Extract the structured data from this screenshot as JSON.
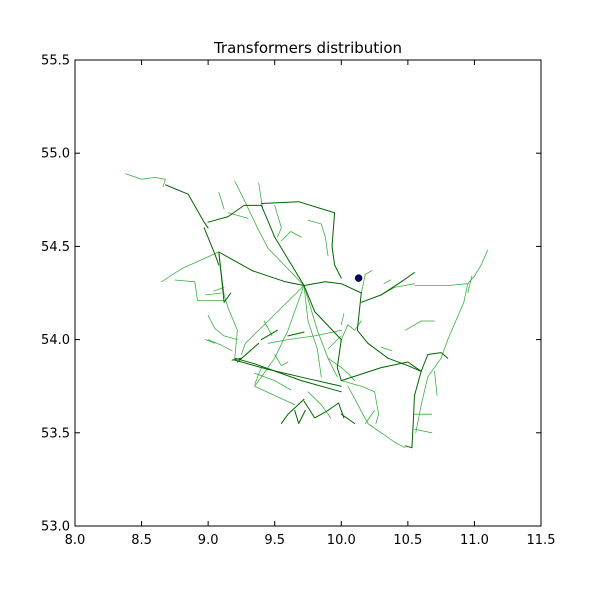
{
  "chart_data": {
    "type": "line",
    "title": "Transformers distribution",
    "xlabel": "",
    "ylabel": "",
    "xlim": [
      8.0,
      11.5
    ],
    "ylim": [
      53.0,
      55.5
    ],
    "x_ticks": [
      8.0,
      8.5,
      9.0,
      9.5,
      10.0,
      10.5,
      11.0,
      11.5
    ],
    "x_tick_labels": [
      "8.0",
      "8.5",
      "9.0",
      "9.5",
      "10.0",
      "10.5",
      "11.0",
      "11.5"
    ],
    "y_ticks": [
      53.0,
      53.5,
      54.0,
      54.5,
      55.0,
      55.5
    ],
    "y_tick_labels": [
      "53.0",
      "53.5",
      "54.0",
      "54.5",
      "55.0",
      "55.5"
    ],
    "grid": false,
    "colors": {
      "dark_line": "#006400",
      "light_line": "#3cb043",
      "point": "#000066"
    },
    "series": [
      {
        "style": "dark",
        "lines": [
          [
            [
              8.68,
              54.83
            ],
            [
              8.85,
              54.78
            ],
            [
              8.97,
              54.63
            ],
            [
              9.0,
              54.6
            ]
          ],
          [
            [
              8.97,
              54.6
            ],
            [
              9.05,
              54.46
            ],
            [
              9.08,
              54.4
            ]
          ],
          [
            [
              9.0,
              54.63
            ],
            [
              9.15,
              54.66
            ],
            [
              9.27,
              54.72
            ],
            [
              9.4,
              54.72
            ]
          ],
          [
            [
              9.08,
              54.47
            ],
            [
              9.33,
              54.37
            ],
            [
              9.58,
              54.31
            ],
            [
              9.72,
              54.29
            ]
          ],
          [
            [
              9.4,
              54.72
            ],
            [
              9.5,
              54.55
            ],
            [
              9.72,
              54.29
            ]
          ],
          [
            [
              9.4,
              54.73
            ],
            [
              9.68,
              54.74
            ],
            [
              9.86,
              54.7
            ],
            [
              9.95,
              54.68
            ]
          ],
          [
            [
              9.95,
              54.68
            ],
            [
              9.93,
              54.5
            ],
            [
              9.95,
              54.4
            ],
            [
              10.0,
              54.33
            ]
          ],
          [
            [
              9.72,
              54.29
            ],
            [
              9.88,
              54.31
            ],
            [
              10.0,
              54.3
            ],
            [
              10.15,
              54.25
            ]
          ],
          [
            [
              10.15,
              54.25
            ],
            [
              10.12,
              54.05
            ],
            [
              10.2,
              53.98
            ],
            [
              10.35,
              53.9
            ]
          ],
          [
            [
              10.35,
              53.9
            ],
            [
              10.5,
              53.86
            ],
            [
              10.6,
              53.83
            ],
            [
              10.65,
              53.92
            ]
          ],
          [
            [
              10.65,
              53.92
            ],
            [
              10.75,
              53.93
            ],
            [
              10.8,
              53.9
            ]
          ],
          [
            [
              10.15,
              54.2
            ],
            [
              10.3,
              54.24
            ],
            [
              10.45,
              54.31
            ],
            [
              10.55,
              54.36
            ]
          ],
          [
            [
              10.6,
              53.83
            ],
            [
              10.55,
              53.7
            ],
            [
              10.54,
              53.55
            ],
            [
              10.53,
              53.42
            ]
          ],
          [
            [
              9.72,
              54.29
            ],
            [
              9.8,
              54.15
            ],
            [
              9.92,
              54.06
            ],
            [
              10.0,
              54.0
            ]
          ],
          [
            [
              10.0,
              54.0
            ],
            [
              9.97,
              53.85
            ],
            [
              10.0,
              53.78
            ]
          ],
          [
            [
              10.0,
              53.78
            ],
            [
              10.3,
              53.85
            ],
            [
              10.5,
              53.88
            ],
            [
              10.6,
              53.83
            ]
          ],
          [
            [
              9.2,
              53.89
            ],
            [
              9.45,
              53.84
            ],
            [
              9.75,
              53.79
            ],
            [
              10.0,
              53.75
            ]
          ],
          [
            [
              9.2,
              53.9
            ],
            [
              9.35,
              53.87
            ],
            [
              9.7,
              53.78
            ],
            [
              10.0,
              53.72
            ]
          ],
          [
            [
              9.72,
              53.68
            ],
            [
              9.6,
              53.6
            ],
            [
              9.55,
              53.55
            ]
          ],
          [
            [
              9.72,
              53.67
            ],
            [
              9.8,
              53.58
            ],
            [
              9.9,
              53.62
            ],
            [
              9.98,
              53.66
            ]
          ],
          [
            [
              9.65,
              53.62
            ],
            [
              9.68,
              53.55
            ],
            [
              9.73,
              53.62
            ]
          ],
          [
            [
              9.98,
              53.66
            ],
            [
              10.02,
              53.58
            ]
          ],
          [
            [
              10.48,
              53.43
            ],
            [
              10.53,
              53.42
            ]
          ],
          [
            [
              9.08,
              54.47
            ],
            [
              9.12,
              54.2
            ],
            [
              9.17,
              54.25
            ]
          ],
          [
            [
              9.22,
              53.88
            ],
            [
              9.38,
              53.98
            ]
          ],
          [
            [
              9.18,
              53.89
            ],
            [
              9.25,
              53.9
            ]
          ],
          [
            [
              9.4,
              54.0
            ],
            [
              9.52,
              54.05
            ]
          ],
          [
            [
              9.6,
              54.02
            ],
            [
              9.72,
              54.04
            ]
          ],
          [
            [
              10.0,
              53.6
            ],
            [
              10.1,
              53.55
            ]
          ]
        ]
      },
      {
        "style": "light",
        "lines": [
          [
            [
              8.38,
              54.89
            ],
            [
              8.5,
              54.86
            ],
            [
              8.6,
              54.87
            ],
            [
              8.68,
              54.86
            ],
            [
              8.66,
              54.82
            ]
          ],
          [
            [
              8.65,
              54.31
            ],
            [
              8.8,
              54.38
            ],
            [
              9.08,
              54.47
            ]
          ],
          [
            [
              8.75,
              54.32
            ],
            [
              8.9,
              54.31
            ],
            [
              8.92,
              54.21
            ],
            [
              9.12,
              54.21
            ]
          ],
          [
            [
              9.08,
              54.47
            ],
            [
              9.1,
              54.35
            ],
            [
              9.12,
              54.24
            ],
            [
              9.15,
              54.17
            ]
          ],
          [
            [
              9.15,
              54.17
            ],
            [
              9.22,
              54.05
            ],
            [
              9.2,
              53.9
            ]
          ],
          [
            [
              9.0,
              54.13
            ],
            [
              9.05,
              54.06
            ],
            [
              9.12,
              54.02
            ],
            [
              9.22,
              54.0
            ]
          ],
          [
            [
              9.0,
              54.0
            ],
            [
              9.1,
              53.97
            ],
            [
              9.18,
              53.94
            ]
          ],
          [
            [
              8.98,
              54.24
            ],
            [
              9.1,
              54.25
            ]
          ],
          [
            [
              8.98,
              54.0
            ],
            [
              9.05,
              53.98
            ]
          ],
          [
            [
              9.04,
              54.26
            ],
            [
              9.12,
              54.28
            ]
          ],
          [
            [
              9.2,
              54.85
            ],
            [
              9.27,
              54.75
            ],
            [
              9.37,
              54.6
            ],
            [
              9.45,
              54.49
            ],
            [
              9.72,
              54.29
            ]
          ],
          [
            [
              9.08,
              54.79
            ],
            [
              9.12,
              54.7
            ]
          ],
          [
            [
              9.15,
              54.68
            ],
            [
              9.3,
              54.65
            ]
          ],
          [
            [
              9.38,
              54.84
            ],
            [
              9.41,
              54.7
            ]
          ],
          [
            [
              9.5,
              54.72
            ],
            [
              9.55,
              54.6
            ],
            [
              9.52,
              54.55
            ]
          ],
          [
            [
              9.55,
              54.53
            ],
            [
              9.62,
              54.58
            ],
            [
              9.7,
              54.55
            ]
          ],
          [
            [
              9.75,
              54.64
            ],
            [
              9.85,
              54.62
            ],
            [
              9.88,
              54.55
            ],
            [
              9.9,
              54.45
            ]
          ],
          [
            [
              9.72,
              54.29
            ],
            [
              9.6,
              54.05
            ],
            [
              9.5,
              53.9
            ],
            [
              9.35,
              53.75
            ]
          ],
          [
            [
              9.72,
              54.29
            ],
            [
              9.82,
              54.05
            ],
            [
              9.9,
              53.9
            ],
            [
              9.97,
              53.8
            ]
          ],
          [
            [
              9.72,
              54.29
            ],
            [
              9.45,
              54.1
            ],
            [
              9.28,
              53.98
            ],
            [
              9.25,
              53.92
            ]
          ],
          [
            [
              9.72,
              54.29
            ],
            [
              9.75,
              54.1
            ],
            [
              9.82,
              53.95
            ],
            [
              9.85,
              53.8
            ]
          ],
          [
            [
              9.45,
              53.98
            ],
            [
              9.6,
              54.0
            ],
            [
              9.8,
              54.02
            ],
            [
              10.0,
              54.05
            ]
          ],
          [
            [
              9.35,
              53.75
            ],
            [
              9.5,
              53.7
            ],
            [
              9.65,
              53.65
            ]
          ],
          [
            [
              9.35,
              53.82
            ],
            [
              9.5,
              53.78
            ],
            [
              9.62,
              53.73
            ]
          ],
          [
            [
              9.35,
              53.76
            ],
            [
              9.4,
              53.85
            ]
          ],
          [
            [
              10.0,
              54.0
            ],
            [
              10.05,
              54.08
            ],
            [
              10.1,
              54.05
            ],
            [
              10.15,
              54.1
            ]
          ],
          [
            [
              10.02,
              54.14
            ],
            [
              10.0,
              54.08
            ]
          ],
          [
            [
              9.9,
              53.95
            ],
            [
              10.0,
              54.02
            ]
          ],
          [
            [
              10.15,
              54.25
            ],
            [
              10.18,
              54.35
            ],
            [
              10.23,
              54.37
            ]
          ],
          [
            [
              10.3,
              54.24
            ],
            [
              10.4,
              54.28
            ],
            [
              10.55,
              54.3
            ]
          ],
          [
            [
              10.32,
              54.3
            ],
            [
              10.37,
              54.32
            ]
          ],
          [
            [
              10.55,
              54.29
            ],
            [
              10.8,
              54.29
            ],
            [
              10.95,
              54.3
            ],
            [
              11.0,
              54.34
            ]
          ],
          [
            [
              10.95,
              54.3
            ],
            [
              10.92,
              54.2
            ],
            [
              10.8,
              54.0
            ],
            [
              10.75,
              53.9
            ]
          ],
          [
            [
              10.75,
              53.9
            ],
            [
              10.65,
              53.8
            ],
            [
              10.6,
              53.65
            ],
            [
              10.56,
              53.5
            ]
          ],
          [
            [
              10.48,
              54.05
            ],
            [
              10.6,
              54.1
            ],
            [
              10.7,
              54.1
            ]
          ],
          [
            [
              10.0,
              53.78
            ],
            [
              10.15,
              53.75
            ],
            [
              10.25,
              53.72
            ]
          ],
          [
            [
              10.05,
              53.75
            ],
            [
              10.2,
              53.55
            ],
            [
              10.3,
              53.5
            ],
            [
              10.4,
              53.45
            ],
            [
              10.48,
              53.42
            ]
          ],
          [
            [
              10.18,
              53.55
            ],
            [
              10.25,
              53.62
            ]
          ],
          [
            [
              10.25,
              53.72
            ],
            [
              10.28,
              53.6
            ],
            [
              10.26,
              53.55
            ]
          ],
          [
            [
              10.55,
              53.6
            ],
            [
              10.68,
              53.6
            ]
          ],
          [
            [
              10.55,
              53.52
            ],
            [
              10.68,
              53.5
            ]
          ],
          [
            [
              9.9,
              53.9
            ],
            [
              10.0,
              53.85
            ],
            [
              10.05,
              53.82
            ],
            [
              10.1,
              53.78
            ]
          ],
          [
            [
              9.75,
              53.72
            ],
            [
              9.85,
              53.65
            ],
            [
              9.9,
              53.6
            ],
            [
              9.92,
              53.58
            ]
          ],
          [
            [
              9.5,
              53.92
            ],
            [
              9.55,
              53.86
            ],
            [
              9.6,
              53.88
            ]
          ],
          [
            [
              11.0,
              54.34
            ],
            [
              11.05,
              54.4
            ],
            [
              11.1,
              54.48
            ]
          ],
          [
            [
              10.98,
              54.34
            ],
            [
              10.95,
              54.25
            ]
          ],
          [
            [
              10.3,
              53.96
            ],
            [
              10.38,
              53.94
            ]
          ],
          [
            [
              9.42,
              54.1
            ],
            [
              9.48,
              54.02
            ]
          ],
          [
            [
              10.7,
              53.83
            ],
            [
              10.72,
              53.7
            ]
          ]
        ]
      },
      {
        "style": "point",
        "points": [
          [
            10.13,
            54.33
          ]
        ]
      }
    ]
  }
}
